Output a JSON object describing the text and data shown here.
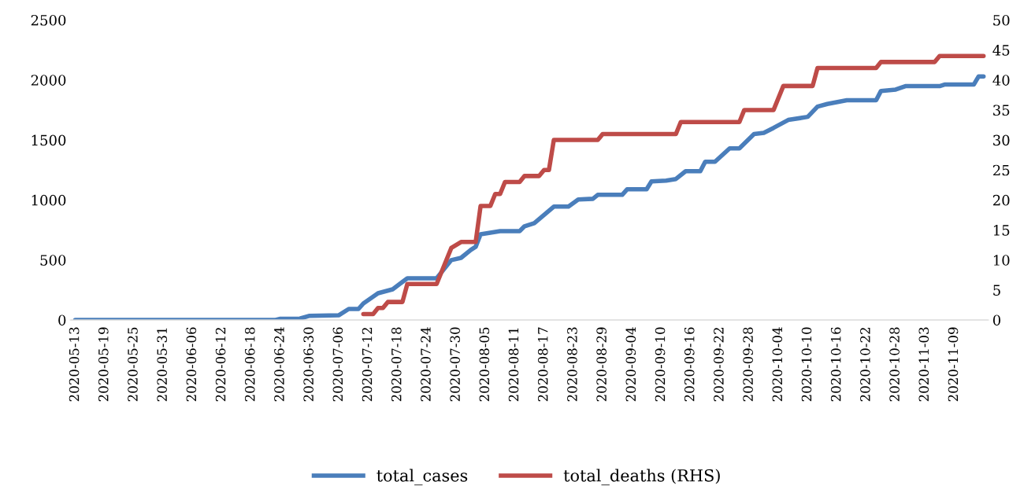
{
  "chart_data": {
    "type": "line",
    "xlim": [
      "2020-05-12",
      "2020-11-16"
    ],
    "xticks": [
      "2020-05-13",
      "2020-05-19",
      "2020-05-25",
      "2020-05-31",
      "2020-06-06",
      "2020-06-12",
      "2020-06-18",
      "2020-06-24",
      "2020-06-30",
      "2020-07-06",
      "2020-07-12",
      "2020-07-18",
      "2020-07-24",
      "2020-07-30",
      "2020-08-05",
      "2020-08-11",
      "2020-08-17",
      "2020-08-23",
      "2020-08-29",
      "2020-09-04",
      "2020-09-10",
      "2020-09-16",
      "2020-09-22",
      "2020-09-28",
      "2020-10-04",
      "2020-10-10",
      "2020-10-16",
      "2020-10-22",
      "2020-10-28",
      "2020-11-03",
      "2020-11-09"
    ],
    "ylim": [
      0,
      2500
    ],
    "yticks": [
      0,
      500,
      1000,
      1500,
      2000,
      2500
    ],
    "y2lim": [
      0,
      50
    ],
    "y2ticks": [
      0,
      5,
      10,
      15,
      20,
      25,
      30,
      35,
      40,
      45,
      50
    ],
    "grid": false,
    "legend": "bottom",
    "marker": "none",
    "line_style": "solid",
    "series": [
      {
        "name": "total_cases",
        "color": "#4a7ebb",
        "x": [
          "2020-05-13",
          "2020-06-23",
          "2020-06-24",
          "2020-06-28",
          "2020-06-30",
          "2020-07-06",
          "2020-07-08",
          "2020-07-10",
          "2020-07-11",
          "2020-07-14",
          "2020-07-17",
          "2020-07-20",
          "2020-07-26",
          "2020-07-29",
          "2020-07-31",
          "2020-08-02",
          "2020-08-03",
          "2020-08-04",
          "2020-08-08",
          "2020-08-12",
          "2020-08-13",
          "2020-08-15",
          "2020-08-19",
          "2020-08-22",
          "2020-08-24",
          "2020-08-27",
          "2020-08-28",
          "2020-09-02",
          "2020-09-03",
          "2020-09-07",
          "2020-09-08",
          "2020-09-11",
          "2020-09-13",
          "2020-09-15",
          "2020-09-18",
          "2020-09-19",
          "2020-09-21",
          "2020-09-24",
          "2020-09-26",
          "2020-09-29",
          "2020-10-01",
          "2020-10-03",
          "2020-10-06",
          "2020-10-10",
          "2020-10-12",
          "2020-10-14",
          "2020-10-18",
          "2020-10-24",
          "2020-10-25",
          "2020-10-28",
          "2020-10-30",
          "2020-11-06",
          "2020-11-07",
          "2020-11-13",
          "2020-11-14",
          "2020-11-15"
        ],
        "values": [
          0,
          0,
          10,
          12,
          35,
          40,
          92,
          92,
          138,
          223,
          256,
          348,
          348,
          499,
          518,
          584,
          610,
          715,
          741,
          741,
          781,
          807,
          945,
          945,
          1004,
          1010,
          1043,
          1043,
          1089,
          1089,
          1155,
          1162,
          1175,
          1240,
          1240,
          1319,
          1319,
          1430,
          1430,
          1549,
          1560,
          1601,
          1667,
          1693,
          1778,
          1800,
          1831,
          1831,
          1909,
          1920,
          1949,
          1949,
          1962,
          1962,
          2030,
          2030
        ]
      },
      {
        "name": "total_deaths (RHS)",
        "color": "#be4b48",
        "axis": "y2",
        "x": [
          "2020-07-11",
          "2020-07-13",
          "2020-07-14",
          "2020-07-15",
          "2020-07-16",
          "2020-07-19",
          "2020-07-20",
          "2020-07-26",
          "2020-07-28",
          "2020-07-29",
          "2020-07-31",
          "2020-08-03",
          "2020-08-04",
          "2020-08-06",
          "2020-08-07",
          "2020-08-08",
          "2020-08-09",
          "2020-08-12",
          "2020-08-13",
          "2020-08-16",
          "2020-08-17",
          "2020-08-18",
          "2020-08-19",
          "2020-08-28",
          "2020-08-29",
          "2020-09-13",
          "2020-09-14",
          "2020-09-26",
          "2020-09-27",
          "2020-10-03",
          "2020-10-05",
          "2020-10-11",
          "2020-10-12",
          "2020-10-24",
          "2020-10-25",
          "2020-11-05",
          "2020-11-06",
          "2020-11-15"
        ],
        "values": [
          1,
          1,
          2,
          2,
          3,
          3,
          6,
          6,
          10,
          12,
          13,
          13,
          19,
          19,
          21,
          21,
          23,
          23,
          24,
          24,
          25,
          25,
          30,
          30,
          31,
          31,
          33,
          33,
          35,
          35,
          39,
          39,
          42,
          42,
          43,
          43,
          44,
          44
        ]
      }
    ]
  }
}
